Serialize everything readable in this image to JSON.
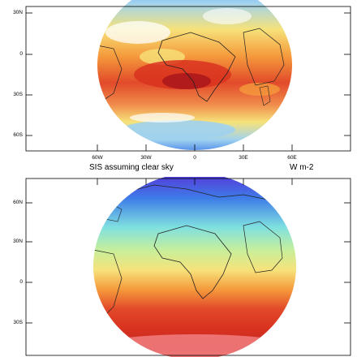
{
  "top_panel": {
    "lat_labels": [
      "30N",
      "0",
      "30S",
      "60S"
    ],
    "lon_labels": [
      "60W",
      "30W",
      "0",
      "30E",
      "60E"
    ]
  },
  "bottom_panel": {
    "title": "SIS assuming clear sky",
    "units": "W m-2",
    "lat_labels": [
      "60N",
      "30N",
      "0",
      "30S"
    ]
  },
  "colors": {
    "deep_purple": "#5b2bd6",
    "blue": "#3e7be8",
    "light_blue": "#9fd2f0",
    "yellow": "#f6e27a",
    "orange": "#f59a3c",
    "red": "#d9321f",
    "dark_red": "#a8141a",
    "pink": "#f07a7a"
  }
}
